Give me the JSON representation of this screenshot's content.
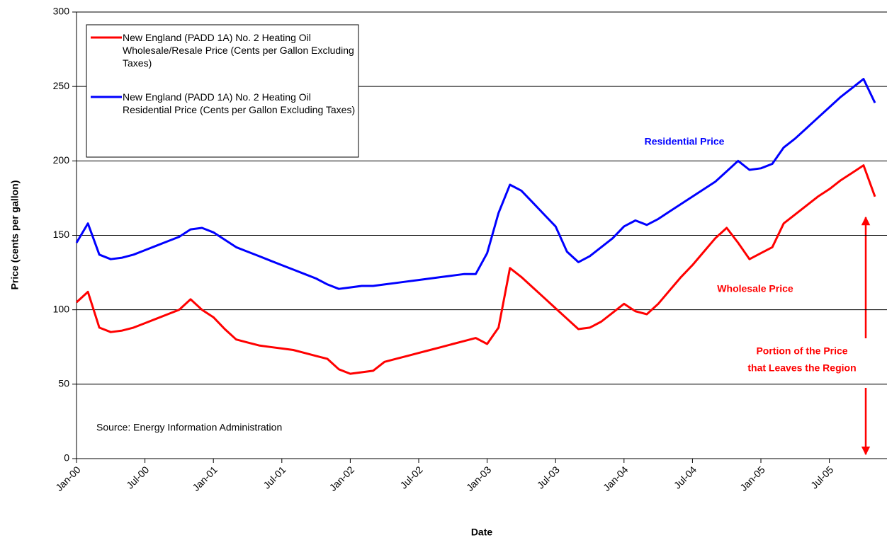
{
  "chart_data": {
    "type": "line",
    "categories": [
      "Jan-00",
      null,
      null,
      null,
      null,
      null,
      "Jul-00",
      null,
      null,
      null,
      null,
      null,
      "Jan-01",
      null,
      null,
      null,
      null,
      null,
      "Jul-01",
      null,
      null,
      null,
      null,
      null,
      "Jan-02",
      null,
      null,
      null,
      null,
      null,
      "Jul-02",
      null,
      null,
      null,
      null,
      null,
      "Jan-03",
      null,
      null,
      null,
      null,
      null,
      "Jul-03",
      null,
      null,
      null,
      null,
      null,
      "Jan-04",
      null,
      null,
      null,
      null,
      null,
      "Jul-04",
      null,
      null,
      null,
      null,
      null,
      "Jan-05",
      null,
      null,
      null,
      null,
      null,
      "Jul-05",
      null,
      null,
      null,
      null
    ],
    "series": [
      {
        "name": "New England (PADD 1A) No. 2 Heating Oil Wholesale/Resale Price (Cents per Gallon Excluding Taxes)",
        "color": "#ff0000",
        "values": [
          105,
          112,
          88,
          85,
          86,
          88,
          91,
          94,
          97,
          100,
          107,
          100,
          95,
          87,
          80,
          78,
          76,
          75,
          74,
          73,
          71,
          69,
          67,
          60,
          57,
          58,
          59,
          65,
          67,
          69,
          71,
          73,
          75,
          77,
          79,
          81,
          77,
          88,
          128,
          122,
          115,
          108,
          101,
          94,
          87,
          88,
          92,
          98,
          104,
          99,
          97,
          104,
          113,
          122,
          130,
          139,
          148,
          155,
          145,
          134,
          138,
          142,
          158,
          164,
          170,
          176,
          181,
          187,
          192,
          197,
          176
        ]
      },
      {
        "name": "New England (PADD 1A) No. 2 Heating Oil Residential Price (Cents per Gallon Excluding Taxes)",
        "color": "#0000ff",
        "values": [
          145,
          158,
          137,
          134,
          135,
          137,
          140,
          143,
          146,
          149,
          154,
          155,
          152,
          147,
          142,
          139,
          136,
          133,
          130,
          127,
          124,
          121,
          117,
          114,
          115,
          116,
          116,
          117,
          118,
          119,
          120,
          121,
          122,
          123,
          124,
          124,
          138,
          165,
          184,
          180,
          172,
          164,
          156,
          139,
          132,
          136,
          142,
          148,
          156,
          160,
          157,
          161,
          166,
          171,
          176,
          181,
          186,
          193,
          200,
          194,
          195,
          198,
          209,
          215,
          222,
          229,
          236,
          243,
          249,
          255,
          239
        ]
      }
    ],
    "ylim": [
      0,
      300
    ],
    "yticks": [
      0,
      50,
      100,
      150,
      200,
      250,
      300
    ],
    "grid": true,
    "xlabel": "Date",
    "ylabel": "Price (cents per gallon)",
    "legend": "upper left",
    "annotations": {
      "residential": "Residential Price",
      "wholesale": "Wholesale Price",
      "portion": [
        "Portion of the Price",
        "that Leaves the Region"
      ],
      "source": "Source: Energy Information Administration"
    }
  }
}
